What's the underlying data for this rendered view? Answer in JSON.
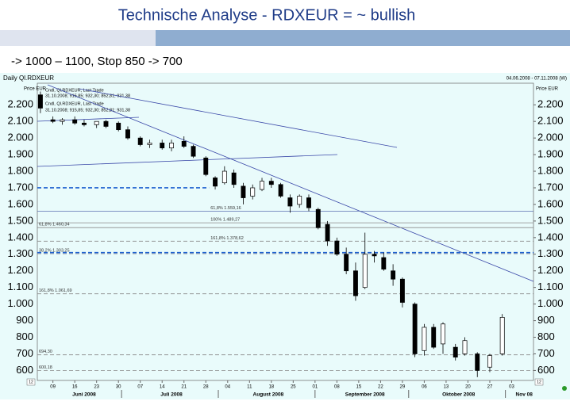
{
  "chart_data": {
    "type": "candlestick",
    "title": "Technische Analyse - RDXEUR = ~ bullish",
    "subtitle": "-> 1000 – 1100, Stop 850 -> 700",
    "chart_name": "Daily Ql.RDXEUR",
    "date_range": "04.06.2008 - 07.11.2008 (W)",
    "axis_label": "Price EUR",
    "annotations": [
      "Cndl, Ql.RDXEUR, Last Trade",
      "31.10.2008; 915,85; 932,30; 852,81; 931,38",
      "Cndl, Ql.RDXEUR, Last Trade",
      "31.10.2008; 915,85; 932,30; 852,81; 931,38"
    ],
    "corner_label": "12",
    "x": [
      1,
      5,
      8,
      12,
      15,
      19,
      22,
      26,
      29,
      33,
      36,
      40,
      43,
      47,
      50,
      54,
      57,
      60,
      63,
      66,
      69,
      72,
      75,
      78,
      81,
      84,
      87,
      90,
      93,
      96,
      99,
      102,
      105,
      108,
      111,
      114,
      117,
      121,
      124,
      127,
      130,
      134,
      137,
      141,
      145,
      149
    ],
    "open": [
      2260,
      2110,
      2100,
      2110,
      2090,
      2080,
      2100,
      2090,
      2050,
      2000,
      1960,
      1970,
      1940,
      1980,
      1950,
      1880,
      1760,
      1730,
      1790,
      1710,
      1650,
      1690,
      1740,
      1720,
      1640,
      1600,
      1640,
      1570,
      1480,
      1380,
      1300,
      1200,
      1100,
      1300,
      1280,
      1200,
      1150,
      1000,
      720,
      860,
      760,
      740,
      700,
      700,
      620,
      700
    ],
    "high": [
      2280,
      2130,
      2120,
      2130,
      2110,
      2100,
      2110,
      2100,
      2070,
      2010,
      1990,
      1990,
      1990,
      2010,
      1960,
      1890,
      1770,
      1830,
      1810,
      1730,
      1720,
      1760,
      1760,
      1730,
      1660,
      1660,
      1660,
      1580,
      1500,
      1400,
      1340,
      1250,
      1430,
      1320,
      1310,
      1240,
      1160,
      1010,
      880,
      880,
      890,
      760,
      800,
      710,
      700,
      940
    ],
    "low": [
      2150,
      2090,
      2080,
      2080,
      2070,
      2060,
      2060,
      2040,
      1990,
      1950,
      1940,
      1930,
      1920,
      1940,
      1880,
      1770,
      1690,
      1720,
      1700,
      1600,
      1630,
      1680,
      1700,
      1640,
      1550,
      1580,
      1560,
      1450,
      1350,
      1290,
      1180,
      1020,
      1090,
      1250,
      1200,
      1110,
      980,
      680,
      690,
      730,
      700,
      660,
      690,
      560,
      590,
      690
    ],
    "close": [
      2180,
      2100,
      2110,
      2090,
      2080,
      2100,
      2070,
      2050,
      2000,
      1960,
      1970,
      1940,
      1970,
      1950,
      1890,
      1780,
      1710,
      1800,
      1720,
      1640,
      1700,
      1740,
      1720,
      1650,
      1590,
      1650,
      1580,
      1460,
      1380,
      1300,
      1200,
      1050,
      1300,
      1290,
      1210,
      1150,
      1010,
      700,
      860,
      740,
      880,
      680,
      780,
      600,
      690,
      920
    ],
    "xlim": [
      0,
      159
    ],
    "xticks": [
      {
        "value": 5,
        "label": "09"
      },
      {
        "value": 12,
        "label": "16"
      },
      {
        "value": 19,
        "label": "23"
      },
      {
        "value": 26,
        "label": "30"
      },
      {
        "value": 33,
        "label": "07"
      },
      {
        "value": 40,
        "label": "14"
      },
      {
        "value": 47,
        "label": "21"
      },
      {
        "value": 54,
        "label": "28"
      },
      {
        "value": 61,
        "label": "04"
      },
      {
        "value": 68,
        "label": "11"
      },
      {
        "value": 75,
        "label": "18"
      },
      {
        "value": 82,
        "label": "25"
      },
      {
        "value": 89,
        "label": "01"
      },
      {
        "value": 96,
        "label": "08"
      },
      {
        "value": 103,
        "label": "15"
      },
      {
        "value": 110,
        "label": "22"
      },
      {
        "value": 117,
        "label": "29"
      },
      {
        "value": 124,
        "label": "06"
      },
      {
        "value": 131,
        "label": "13"
      },
      {
        "value": 138,
        "label": "20"
      },
      {
        "value": 145,
        "label": "27"
      },
      {
        "value": 152,
        "label": "03"
      }
    ],
    "months": [
      {
        "value": 15,
        "label": "Juni 2008"
      },
      {
        "value": 43,
        "label": "Juli 2008"
      },
      {
        "value": 74,
        "label": "August 2008"
      },
      {
        "value": 105,
        "label": "September 2008"
      },
      {
        "value": 135,
        "label": "Oktober 2008"
      },
      {
        "value": 156,
        "label": "Nov 08"
      }
    ],
    "month_starts": [
      27,
      58,
      89,
      119,
      150
    ],
    "ylim": [
      540,
      2330
    ],
    "yticks": [
      {
        "value": 600,
        "label": "600"
      },
      {
        "value": 700,
        "label": "700"
      },
      {
        "value": 800,
        "label": "800"
      },
      {
        "value": 900,
        "label": "900"
      },
      {
        "value": 1000,
        "label": "1.000"
      },
      {
        "value": 1100,
        "label": "1.100"
      },
      {
        "value": 1200,
        "label": "1.200"
      },
      {
        "value": 1300,
        "label": "1.300"
      },
      {
        "value": 1400,
        "label": "1.400"
      },
      {
        "value": 1500,
        "label": "1.500"
      },
      {
        "value": 1600,
        "label": "1.600"
      },
      {
        "value": 1700,
        "label": "1.700"
      },
      {
        "value": 1800,
        "label": "1.800"
      },
      {
        "value": 1900,
        "label": "1.900"
      },
      {
        "value": 2000,
        "label": "2.000"
      },
      {
        "value": 2100,
        "label": "2.100"
      },
      {
        "value": 2200,
        "label": "2.200"
      }
    ],
    "levels": [
      {
        "value": 1559.16,
        "label": "61,8% 1.559,16",
        "style": "solid",
        "color": "#5a6fb0",
        "label_at": 55
      },
      {
        "value": 1489.27,
        "label": "100% 1.489,27",
        "style": "solid",
        "color": "#8a8a8a",
        "label_at": 55
      },
      {
        "value": 1460.34,
        "label": "61,8% 1.460,34",
        "style": "solid",
        "color": "#8a8a8a",
        "label_at": 0
      },
      {
        "value": 1378.62,
        "label": "161,8% 1.378,62",
        "style": "dashed",
        "color": "#8a8a8a",
        "label_at": 55
      },
      {
        "value": 1303.25,
        "label": "38,2% 1.303,25",
        "style": "dashed",
        "color": "#8a8a8a",
        "label_at": 0
      },
      {
        "value": 1061.69,
        "label": "161,8% 1.061,69",
        "style": "dashed",
        "color": "#8a8a8a",
        "label_at": 0
      },
      {
        "value": 694.3,
        "label": "694,30",
        "style": "dashed",
        "color": "#8a8a8a",
        "label_at": 0
      },
      {
        "value": 600.18,
        "label": "600,18",
        "style": "dashed",
        "color": "#8a8a8a",
        "label_at": 0
      }
    ],
    "support": [
      {
        "value": 1700,
        "color": "#1a5fd0",
        "end": 55
      },
      {
        "value": 1310,
        "color": "#1a5fd0",
        "end": 159
      }
    ]
  }
}
